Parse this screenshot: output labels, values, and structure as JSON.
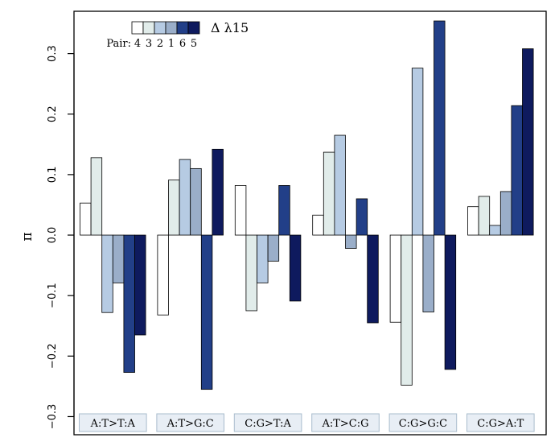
{
  "chart_data": {
    "type": "bar",
    "title": "",
    "xlabel": "",
    "ylabel": "π",
    "ylim": [
      -0.33,
      0.37
    ],
    "yticks": [
      -0.3,
      -0.2,
      -0.1,
      0.0,
      0.1,
      0.2,
      0.3
    ],
    "ytick_labels": [
      "−0.3",
      "−0.2",
      "−0.1",
      "0.0",
      "0.1",
      "0.2",
      "0.3"
    ],
    "grid": false,
    "legend": {
      "placement": "top-left",
      "title": "Δ λ15",
      "pair_label": "Pair:",
      "pair_order": [
        "4",
        "3",
        "2",
        "1",
        "6",
        "5"
      ]
    },
    "categories": [
      "A:T>T:A",
      "A:T>G:C",
      "C:G>T:A",
      "A:T>C:G",
      "C:G>G:C",
      "C:G>A:T"
    ],
    "series": [
      {
        "name": "4",
        "color": "#ffffff",
        "values": [
          0.053,
          -0.132,
          0.082,
          0.033,
          -0.144,
          0.047
        ]
      },
      {
        "name": "3",
        "color": "#e1ecea",
        "values": [
          0.128,
          0.091,
          -0.125,
          0.137,
          -0.248,
          0.064
        ]
      },
      {
        "name": "2",
        "color": "#b6cbe3",
        "values": [
          -0.128,
          0.125,
          -0.079,
          0.165,
          0.276,
          0.016
        ]
      },
      {
        "name": "1",
        "color": "#9aaec9",
        "values": [
          -0.079,
          0.11,
          -0.043,
          -0.022,
          -0.127,
          0.072
        ]
      },
      {
        "name": "6",
        "color": "#223f88",
        "values": [
          -0.227,
          -0.255,
          0.082,
          0.06,
          0.354,
          0.214
        ]
      },
      {
        "name": "5",
        "color": "#0e1a5e",
        "values": [
          -0.165,
          0.142,
          -0.109,
          -0.145,
          -0.222,
          0.308
        ]
      }
    ]
  }
}
